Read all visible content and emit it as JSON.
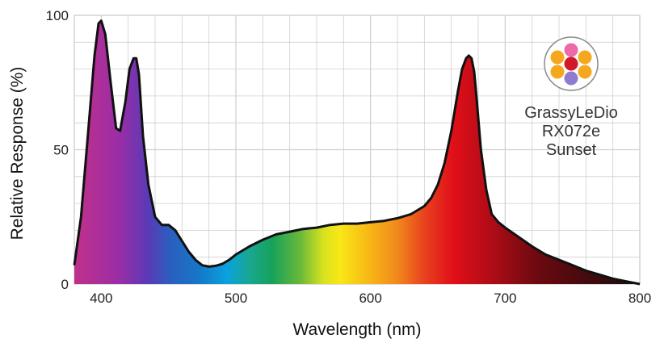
{
  "chart_data": {
    "type": "area",
    "title": "",
    "xlabel": "Wavelength (nm)",
    "ylabel": "Relative Response (%)",
    "xlim": [
      380,
      800
    ],
    "ylim": [
      0,
      100
    ],
    "x_ticks": [
      400,
      500,
      600,
      700,
      800
    ],
    "y_ticks": [
      0,
      50,
      100
    ],
    "grid": true,
    "series": [
      {
        "x": [
          380,
          385,
          390,
          395,
          398,
          400,
          403,
          407,
          411,
          414,
          418,
          421,
          424,
          426,
          428,
          431,
          435,
          440,
          445,
          450,
          455,
          460,
          465,
          470,
          475,
          480,
          485,
          490,
          495,
          500,
          510,
          520,
          530,
          540,
          550,
          560,
          570,
          580,
          590,
          600,
          610,
          620,
          630,
          640,
          645,
          650,
          655,
          660,
          665,
          668,
          671,
          673,
          675,
          677,
          679,
          682,
          686,
          690,
          695,
          700,
          710,
          720,
          730,
          740,
          750,
          760,
          770,
          780,
          790,
          800
        ],
        "y": [
          7,
          25,
          55,
          85,
          97,
          98,
          93,
          75,
          58,
          57,
          68,
          80,
          84,
          84,
          78,
          55,
          37,
          25,
          22,
          22,
          20,
          16,
          12,
          9,
          7,
          6.5,
          6.8,
          7.5,
          9,
          11,
          14,
          16.5,
          18.5,
          19.5,
          20.5,
          21,
          22,
          22.5,
          22.5,
          23,
          23.5,
          24.5,
          26,
          29,
          32,
          37,
          45,
          57,
          72,
          80,
          84,
          85,
          84,
          79,
          68,
          50,
          35,
          26,
          23,
          21,
          17.5,
          14,
          11,
          9,
          7,
          5,
          3.5,
          2,
          1,
          0
        ]
      }
    ],
    "colors": {
      "curve": "#111111",
      "grid": "#cfcfcf",
      "grid_bg": "#ffffff"
    }
  },
  "product": {
    "name": "GrassyLeDio",
    "model": "RX072e",
    "variant": "Sunset",
    "led_colors": [
      "#ec6aa8",
      "#f5a81e",
      "#f5a81e",
      "#d01a2a",
      "#f5a81e",
      "#f5a81e",
      "#8f7ccf"
    ]
  }
}
